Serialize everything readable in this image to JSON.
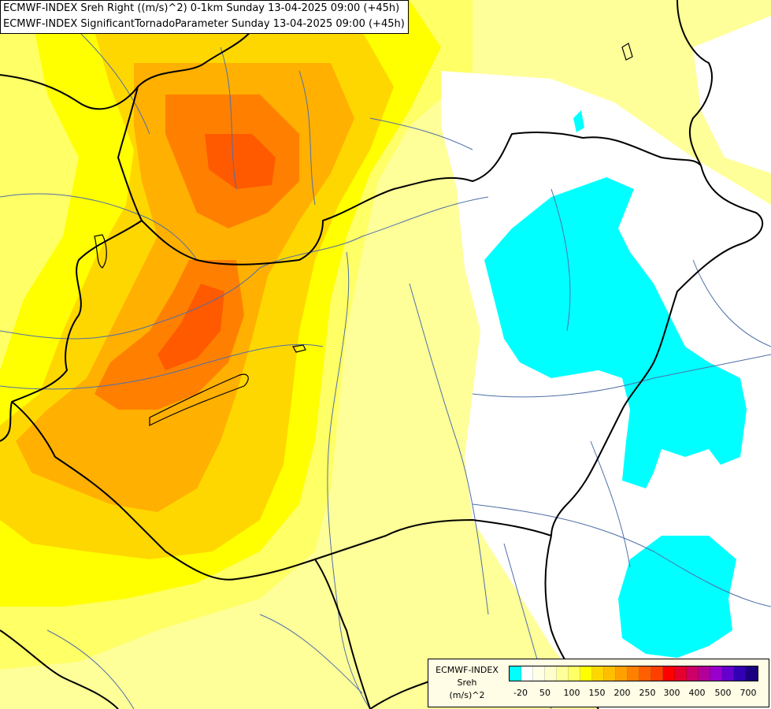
{
  "title": {
    "line1": "ECMWF-INDEX Sreh Right ((m/s)^2) 0-1km Sunday 13-04-2025 09:00 (+45h)",
    "line2": "ECMWF-INDEX SignificantTornadoParameter Sunday 13-04-2025 09:00 (+45h)"
  },
  "legend": {
    "title_line1": "ECMWF-INDEX",
    "title_line2": "Sreh",
    "title_line3": "(m/s)^2",
    "ticks": [
      "-20",
      "50",
      "100",
      "150",
      "200",
      "250",
      "300",
      "400",
      "500",
      "700"
    ],
    "colors": [
      "#00ffff",
      "#ffffff",
      "#ffffe6",
      "#ffffcc",
      "#ffff99",
      "#ffff66",
      "#ffff00",
      "#ffd700",
      "#ffbf00",
      "#ff9f00",
      "#ff7f00",
      "#ff5f00",
      "#ff3f00",
      "#ff0000",
      "#e60030",
      "#cc0066",
      "#b30099",
      "#9900cc",
      "#6600cc",
      "#3300b3",
      "#1a0080"
    ]
  },
  "colors": {
    "cyan": "#00ffff",
    "pale_yellow": "#ffff99",
    "light_yellow": "#ffff66",
    "yellow": "#ffff00",
    "gold": "#ffd700",
    "orange": "#ffb000",
    "dark_orange": "#ff8000",
    "red_orange": "#ff5000",
    "border": "#000000",
    "river": "#4f6fa8"
  }
}
